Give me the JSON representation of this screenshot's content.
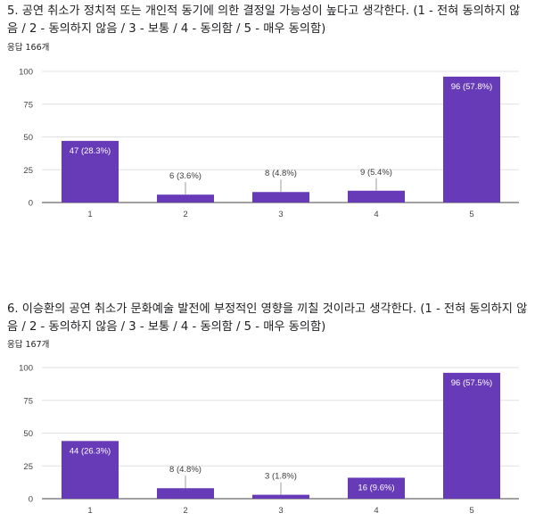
{
  "questions": [
    {
      "title": "5. 공연 취소가 정치적 또는 개인적 동기에 의한 결정일 가능성이 높다고 생각한다. (1 - 전혀 동의하지 않음 / 2 - 동의하지 않음 / 3 - 보통 / 4 - 동의함 / 5 - 매우 동의함)",
      "response_count": "응답 166개"
    },
    {
      "title": "6. 이승환의 공연 취소가 문화예술 발전에 부정적인 영향을 끼칠 것이라고 생각한다. (1 - 전혀 동의하지 않음 / 2 - 동의하지 않음 / 3 - 보통 / 4 - 동의함 / 5 - 매우 동의함)",
      "response_count": "응답 167개"
    }
  ],
  "colors": {
    "bar": "#673ab7",
    "grid": "#e0e0e0",
    "axis": "#444444"
  },
  "chart_data": [
    {
      "type": "bar",
      "categories": [
        "1",
        "2",
        "3",
        "4",
        "5"
      ],
      "values": [
        47,
        6,
        8,
        9,
        96
      ],
      "data_labels": [
        "47 (28.3%)",
        "6 (3.6%)",
        "8 (4.8%)",
        "9 (5.4%)",
        "96 (57.8%)"
      ],
      "yticks": [
        "0",
        "25",
        "50",
        "75",
        "100"
      ],
      "ylim": [
        0,
        100
      ],
      "grid": true
    },
    {
      "type": "bar",
      "categories": [
        "1",
        "2",
        "3",
        "4",
        "5"
      ],
      "values": [
        44,
        8,
        3,
        16,
        96
      ],
      "data_labels": [
        "44 (26.3%)",
        "8 (4.8%)",
        "3 (1.8%)",
        "16 (9.6%)",
        "96 (57.5%)"
      ],
      "yticks": [
        "0",
        "25",
        "50",
        "75",
        "100"
      ],
      "ylim": [
        0,
        100
      ],
      "grid": true
    }
  ]
}
